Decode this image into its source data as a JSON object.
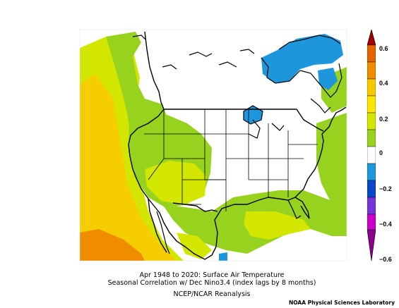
{
  "caption": {
    "line1": "Apr 1948 to 2020: Surface Air Temperature",
    "line2": "Seasonal Correlation w/ Dec Nino3.4 (index lags by 8 months)",
    "line3": "NCEP/NCAR Reanalysis"
  },
  "credit": "NOAA Physical Sciences Laboratory",
  "colorbar": {
    "ticks": [
      "0.6",
      "0.4",
      "0.2",
      "0",
      "−0.2",
      "−0.4",
      "−0.6"
    ],
    "colors": [
      "#a50000",
      "#f08200",
      "#f5c800",
      "#fae600",
      "#d2e600",
      "#96d21e",
      "#ffffff",
      "#ffffff",
      "#1e96dc",
      "#0a46c8",
      "#7832dc",
      "#c800c8",
      "#8c008c"
    ]
  },
  "legend_colors": {
    "strong_positive": "#f08c00",
    "moderate_positive": "#f5cd00",
    "weak_positive_yellow": "#e1e100",
    "weak_positive_green": "#96d21e",
    "weak_negative": "#1e96dc",
    "neutral": "#ffffff"
  }
}
